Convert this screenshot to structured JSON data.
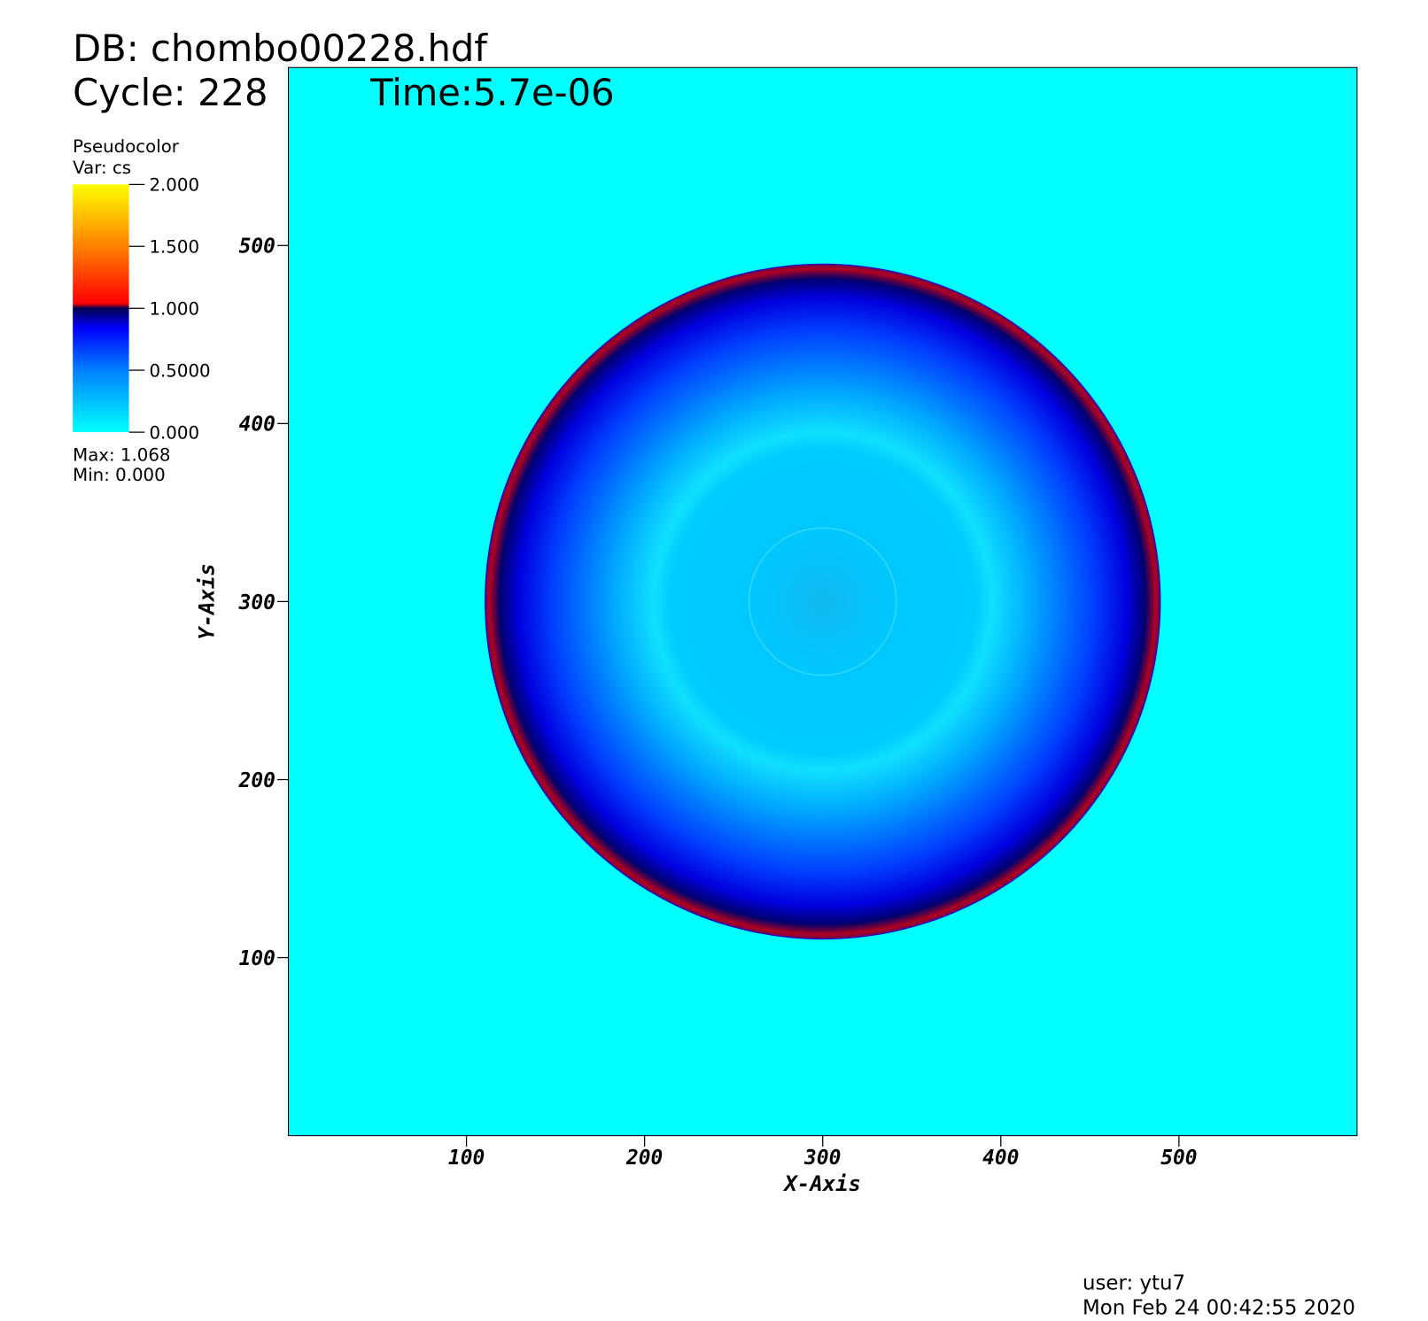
{
  "chart_data": {
    "type": "pseudocolor",
    "title": "DB: chombo00228.hdf",
    "cycle": "Cycle: 228",
    "time": "Time:5.7e-06",
    "legend_title": "Pseudocolor",
    "legend_var": "Var: cs",
    "legend_stats": [
      "Max:  1.068",
      "Min:  0.000"
    ],
    "colorbar_lim": [
      0,
      2
    ],
    "colorbar_ticks": [
      {
        "value": 2,
        "label": "2.000"
      },
      {
        "value": 1.5,
        "label": "1.500"
      },
      {
        "value": 1,
        "label": "1.000"
      },
      {
        "value": 0.5,
        "label": "0.5000"
      },
      {
        "value": 0,
        "label": "0.000"
      }
    ],
    "xlabel": "X-Axis",
    "ylabel": "Y-Axis",
    "xlim": [
      0,
      600
    ],
    "ylim": [
      0,
      600
    ],
    "xticks": [
      100,
      200,
      300,
      400,
      500
    ],
    "yticks": [
      100,
      200,
      300,
      400,
      500
    ],
    "user": "user: ytu7",
    "date": "Mon Feb 24 00:42:55 2020"
  }
}
